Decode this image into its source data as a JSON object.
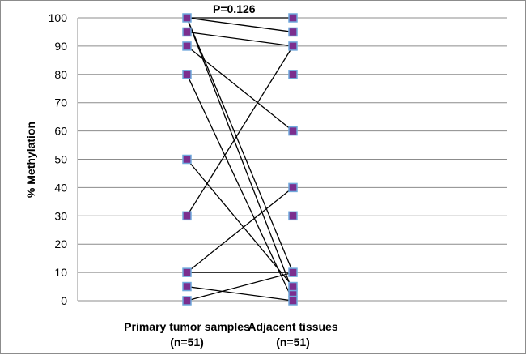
{
  "chart_data": {
    "type": "line",
    "title": "",
    "xlabel": "",
    "ylabel": "% Methylation",
    "ylim": [
      0,
      100
    ],
    "yticks": [
      0,
      10,
      20,
      30,
      40,
      50,
      60,
      70,
      80,
      90,
      100
    ],
    "grid": true,
    "categories": [
      {
        "line1": "Primary tumor samples",
        "line2": "(n=51)"
      },
      {
        "line1": "Adjacent tissues",
        "line2": "(n=51)"
      }
    ],
    "annotation": "P=0.126",
    "pairs": [
      {
        "primary": 100,
        "adjacent": 100
      },
      {
        "primary": 100,
        "adjacent": 95
      },
      {
        "primary": 100,
        "adjacent": 10
      },
      {
        "primary": 100,
        "adjacent": 3
      },
      {
        "primary": 95,
        "adjacent": 90
      },
      {
        "primary": 90,
        "adjacent": 60
      },
      {
        "primary": 80,
        "adjacent": 0
      },
      {
        "primary": 50,
        "adjacent": 5
      },
      {
        "primary": 30,
        "adjacent": 90
      },
      {
        "primary": 10,
        "adjacent": 40
      },
      {
        "primary": 10,
        "adjacent": 10
      },
      {
        "primary": 5,
        "adjacent": 0
      },
      {
        "primary": 0,
        "adjacent": 10
      }
    ],
    "extra_points": {
      "adjacent": [
        80,
        30
      ]
    },
    "colors": {
      "line": "#000000",
      "grid": "#8c8c8c",
      "marker_fill": "#7b2e8e",
      "marker_edge": "#6fa8dc"
    }
  }
}
